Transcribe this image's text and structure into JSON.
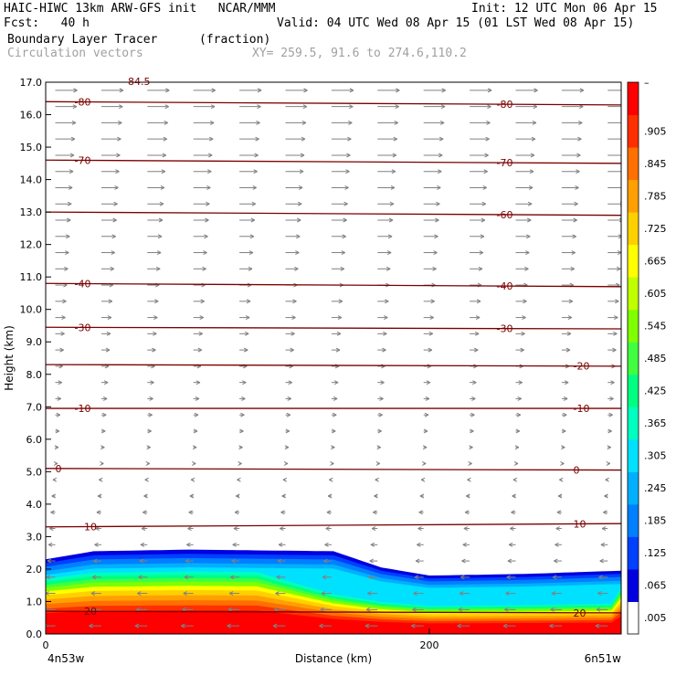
{
  "header": {
    "title_left": "HAIC-HIWC 13km ARW-GFS init   NCAR/MMM",
    "init": "Init: 12 UTC Mon 06 Apr 15",
    "fcst": "Fcst:   40 h",
    "valid": "Valid: 04 UTC Wed 08 Apr 15 (01 LST Wed 08 Apr 15)",
    "field_name": "Boundary Layer Tracer",
    "field_units": "(fraction)",
    "vectors_name": "Circulation vectors",
    "xy": "XY= 259.5, 91.6 to 274.6,110.2"
  },
  "colors": {
    "contour": "#7a0000",
    "vector": "#808080",
    "scale": [
      "#ffffff",
      "#0000e0",
      "#0040ff",
      "#0080ff",
      "#00b0ff",
      "#00e0ff",
      "#00ffc0",
      "#00ff80",
      "#40ff40",
      "#80ff00",
      "#c0ff00",
      "#ffff00",
      "#ffd000",
      "#ffa000",
      "#ff7000",
      "#ff3000",
      "#ff0000"
    ]
  },
  "chart_data": {
    "type": "heatmap",
    "title": "Boundary Layer Tracer",
    "xlabel": "Distance (km)",
    "ylabel": "Height (km)",
    "xlim": [
      0,
      300
    ],
    "ylim": [
      0,
      17
    ],
    "x_ticks": [
      "0",
      "200"
    ],
    "x_end_labels": [
      "4n53w",
      "6n51w"
    ],
    "y_ticks": [
      "0.0",
      "1.0",
      "2.0",
      "3.0",
      "4.0",
      "5.0",
      "6.0",
      "7.0",
      "8.0",
      "9.0",
      "10.0",
      "11.0",
      "12.0",
      "13.0",
      "14.0",
      "15.0",
      "16.0",
      "17.0"
    ],
    "colorbar_labels": [
      ".005",
      ".065",
      ".125",
      ".185",
      ".245",
      ".305",
      ".365",
      ".425",
      ".485",
      ".545",
      ".605",
      ".665",
      ".725",
      ".785",
      ".845",
      ".905"
    ],
    "colorbar_top": "–",
    "contour_label_top_partial": "84.5",
    "boundary_layer_top_km": [
      {
        "x": 0,
        "y": 2.3
      },
      {
        "x": 25,
        "y": 2.55
      },
      {
        "x": 75,
        "y": 2.6
      },
      {
        "x": 150,
        "y": 2.55
      },
      {
        "x": 175,
        "y": 2.05
      },
      {
        "x": 200,
        "y": 1.8
      },
      {
        "x": 250,
        "y": 1.85
      },
      {
        "x": 300,
        "y": 1.95
      }
    ],
    "contours": [
      {
        "label": "-80",
        "y": [
          16.4,
          16.3
        ],
        "label_x": [
          15,
          235
        ]
      },
      {
        "label": "-70",
        "y": [
          14.6,
          14.5
        ],
        "label_x": [
          15,
          235
        ]
      },
      {
        "label": "-60",
        "y": [
          13.0,
          12.9
        ],
        "label_x": [
          235
        ]
      },
      {
        "label": "-40",
        "y": [
          10.8,
          10.7
        ],
        "label_x": [
          15,
          235
        ]
      },
      {
        "label": "-30",
        "y": [
          9.45,
          9.4
        ],
        "label_x": [
          15,
          235
        ]
      },
      {
        "label": "-20",
        "y": [
          8.3,
          8.25
        ],
        "label_x": [
          275
        ]
      },
      {
        "label": "-10",
        "y": [
          6.95,
          6.95
        ],
        "label_x": [
          15,
          275
        ]
      },
      {
        "label": "0",
        "y": [
          5.1,
          5.05
        ],
        "label_x": [
          5,
          275
        ]
      },
      {
        "label": "10",
        "y": [
          3.3,
          3.4
        ],
        "label_x": [
          20,
          275
        ]
      },
      {
        "label": "20",
        "y": [
          0.7,
          0.65
        ],
        "label_x": [
          20,
          275
        ]
      }
    ]
  }
}
